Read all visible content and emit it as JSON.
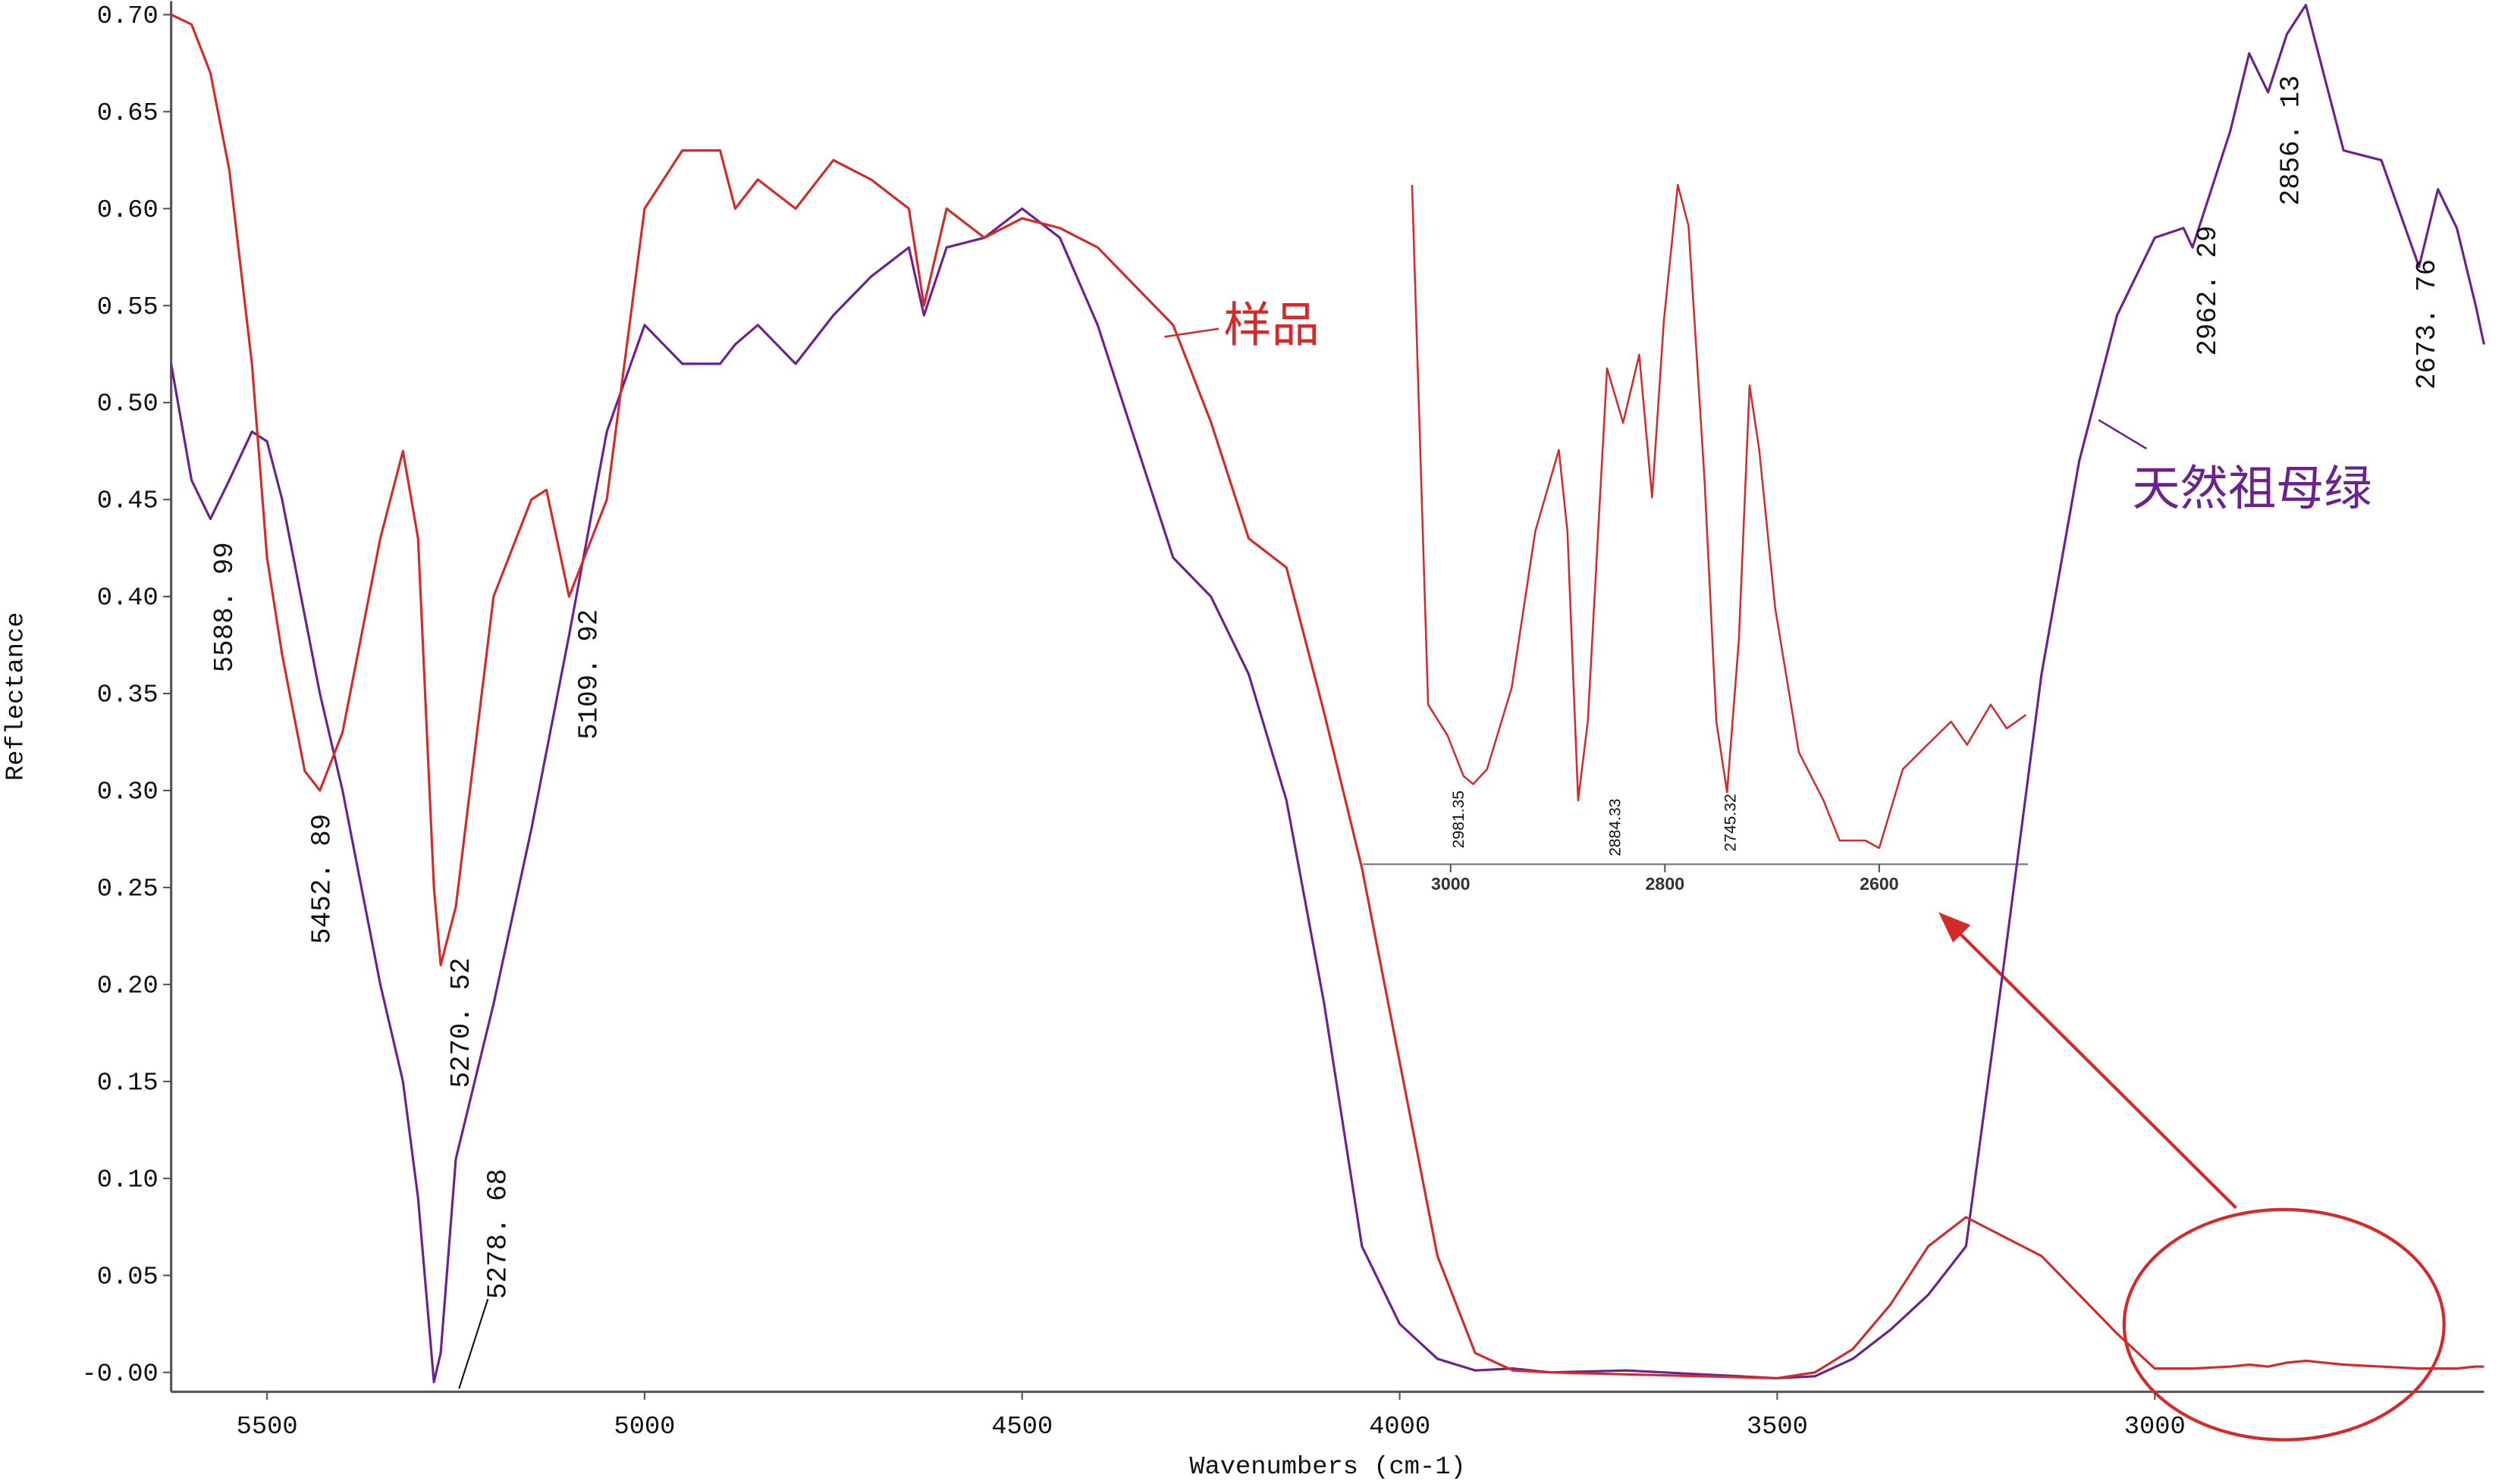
{
  "chart_data": [
    {
      "type": "line",
      "x_label": "Wavenumbers (cm-1)",
      "y_label": "Reflectance",
      "xlim": [
        5627,
        2564
      ],
      "ylim": [
        -0.01,
        0.707
      ],
      "xticks": [
        5500,
        5000,
        4500,
        4000,
        3500,
        3000
      ],
      "yticks": [
        {
          "value": 0,
          "label": "-0.00"
        },
        {
          "value": 0.05,
          "label": "0.05"
        },
        {
          "value": 0.1,
          "label": "0.10"
        },
        {
          "value": 0.15,
          "label": "0.15"
        },
        {
          "value": 0.2,
          "label": "0.20"
        },
        {
          "value": 0.25,
          "label": "0.25"
        },
        {
          "value": 0.3,
          "label": "0.30"
        },
        {
          "value": 0.35,
          "label": "0.35"
        },
        {
          "value": 0.4,
          "label": "0.40"
        },
        {
          "value": 0.45,
          "label": "0.45"
        },
        {
          "value": 0.5,
          "label": "0.50"
        },
        {
          "value": 0.55,
          "label": "0.55"
        },
        {
          "value": 0.6,
          "label": "0.60"
        },
        {
          "value": 0.65,
          "label": "0.65"
        },
        {
          "value": 0.7,
          "label": "0.70"
        }
      ],
      "x": [
        5627,
        5600,
        5575,
        5550,
        5520,
        5500,
        5480,
        5450,
        5430,
        5400,
        5350,
        5320,
        5300,
        5279,
        5270,
        5250,
        5200,
        5150,
        5130,
        5100,
        5050,
        5000,
        4950,
        4900,
        4880,
        4850,
        4800,
        4750,
        4700,
        4650,
        4630,
        4600,
        4550,
        4500,
        4450,
        4400,
        4350,
        4300,
        4250,
        4200,
        4150,
        4100,
        4050,
        4000,
        3950,
        3900,
        3850,
        3800,
        3700,
        3600,
        3500,
        3450,
        3400,
        3350,
        3300,
        3250,
        3200,
        3150,
        3100,
        3050,
        3000,
        2962,
        2950,
        2900,
        2875,
        2850,
        2825,
        2800,
        2750,
        2700,
        2650,
        2625,
        2600,
        2575,
        2564
      ],
      "series": [
        {
          "name": "天然祖母绿",
          "color": "#6b2290",
          "values": [
            0.52,
            0.46,
            0.44,
            0.46,
            0.485,
            0.48,
            0.45,
            0.39,
            0.35,
            0.3,
            0.2,
            0.15,
            0.09,
            -0.005,
            0.01,
            0.11,
            0.19,
            0.28,
            0.32,
            0.38,
            0.485,
            0.54,
            0.52,
            0.52,
            0.53,
            0.54,
            0.52,
            0.545,
            0.565,
            0.58,
            0.545,
            0.58,
            0.585,
            0.6,
            0.585,
            0.54,
            0.48,
            0.42,
            0.4,
            0.36,
            0.295,
            0.19,
            0.065,
            0.025,
            0.007,
            0.001,
            0.002,
            0.0,
            0.001,
            -0.001,
            -0.003,
            -0.002,
            0.007,
            0.022,
            0.04,
            0.065,
            0.21,
            0.36,
            0.47,
            0.545,
            0.585,
            0.59,
            0.58,
            0.64,
            0.68,
            0.66,
            0.69,
            0.705,
            0.63,
            0.625,
            0.57,
            0.61,
            0.59,
            0.55,
            0.53
          ]
        },
        {
          "name": "样品",
          "color": "#d42a2a",
          "values": [
            0.7,
            0.695,
            0.67,
            0.62,
            0.52,
            0.42,
            0.37,
            0.31,
            0.3,
            0.33,
            0.43,
            0.475,
            0.43,
            0.25,
            0.21,
            0.24,
            0.4,
            0.45,
            0.455,
            0.4,
            0.45,
            0.6,
            0.63,
            0.63,
            0.6,
            0.615,
            0.6,
            0.625,
            0.615,
            0.6,
            0.55,
            0.6,
            0.585,
            0.595,
            0.59,
            0.58,
            0.56,
            0.54,
            0.49,
            0.43,
            0.415,
            0.34,
            0.26,
            0.16,
            0.06,
            0.01,
            0.001,
            0.0,
            -0.001,
            -0.002,
            -0.003,
            0.0,
            0.012,
            0.035,
            0.065,
            0.08,
            0.07,
            0.06,
            0.04,
            0.02,
            0.002,
            0.002,
            0.002,
            0.003,
            0.004,
            0.003,
            0.005,
            0.006,
            0.004,
            0.003,
            0.002,
            0.002,
            0.002,
            0.003,
            0.003
          ]
        }
      ],
      "annotations": [
        "5588. 99",
        "5452. 89",
        "5270. 52",
        "5109. 92",
        "5278. 68",
        "2962. 29",
        "2856. 13",
        "2673. 76"
      ]
    },
    {
      "type": "line",
      "xlim": [
        3082,
        2461
      ],
      "ylim": [
        0,
        1
      ],
      "xticks": [
        3000,
        2800,
        2600
      ],
      "x": [
        3036,
        3021,
        3003,
        2988,
        2979,
        2966,
        2943,
        2921,
        2899,
        2891,
        2881,
        2872,
        2854,
        2839,
        2824,
        2812,
        2801,
        2788,
        2778,
        2763,
        2752,
        2742,
        2731,
        2721,
        2712,
        2697,
        2675,
        2652,
        2637,
        2613,
        2600,
        2578,
        2555,
        2533,
        2518,
        2496,
        2481,
        2463
      ],
      "series": [
        {
          "color": "#d42a2a",
          "values": [
            1.0,
            0.235,
            0.19,
            0.13,
            0.118,
            0.14,
            0.26,
            0.49,
            0.61,
            0.49,
            0.094,
            0.21,
            0.73,
            0.65,
            0.75,
            0.54,
            0.8,
            1.0,
            0.94,
            0.565,
            0.21,
            0.106,
            0.33,
            0.705,
            0.61,
            0.376,
            0.165,
            0.094,
            0.035,
            0.035,
            0.024,
            0.14,
            0.176,
            0.21,
            0.176,
            0.235,
            0.2,
            0.22
          ]
        }
      ],
      "annotations": [
        "2981.35",
        "2884.33",
        "2745.32"
      ]
    }
  ]
}
